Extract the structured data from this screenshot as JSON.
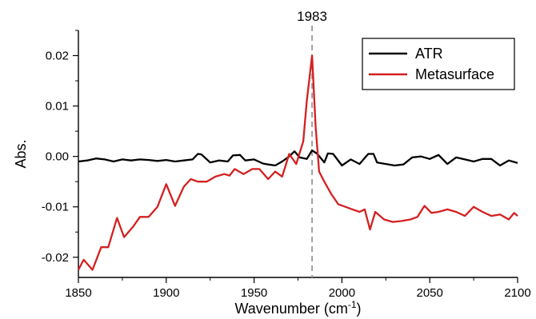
{
  "chart_data": {
    "type": "line",
    "xlabel": "Wavenumber (cm",
    "xlabel_sup": "-1",
    "xlabel_close": ")",
    "ylabel": "Abs.",
    "xlim": [
      1850,
      2100
    ],
    "ylim": [
      -0.024,
      0.025
    ],
    "xticks": [
      1850,
      1900,
      1950,
      2000,
      2050,
      2100
    ],
    "xtick_labels": [
      "1850",
      "1900",
      "1950",
      "2000",
      "2050",
      "2100"
    ],
    "yticks": [
      -0.02,
      -0.01,
      0.0,
      0.01,
      0.02
    ],
    "ytick_labels": [
      "-0.02",
      "-0.01",
      "0.00",
      "0.01",
      "0.02"
    ],
    "grid": false,
    "legend_position": "top-right",
    "reference_line": {
      "x": 1983,
      "label": "1983",
      "style": "dashed",
      "color": "#999999"
    },
    "series": [
      {
        "name": "ATR",
        "color": "#000000",
        "x": [
          1850,
          1855,
          1860,
          1865,
          1870,
          1875,
          1880,
          1885,
          1890,
          1895,
          1900,
          1905,
          1910,
          1915,
          1918,
          1920,
          1925,
          1930,
          1935,
          1938,
          1942,
          1945,
          1950,
          1955,
          1958,
          1962,
          1966,
          1970,
          1973,
          1976,
          1980,
          1983,
          1986,
          1990,
          1992,
          1995,
          2000,
          2005,
          2010,
          2015,
          2018,
          2020,
          2025,
          2030,
          2035,
          2040,
          2045,
          2050,
          2055,
          2060,
          2065,
          2070,
          2075,
          2080,
          2085,
          2090,
          2095,
          2100
        ],
        "y": [
          -0.001,
          -0.0008,
          -0.0004,
          -0.0006,
          -0.001,
          -0.0006,
          -0.0008,
          -0.0006,
          -0.0007,
          -0.0009,
          -0.0007,
          -0.001,
          -0.0008,
          -0.0006,
          0.0005,
          0.0004,
          -0.0012,
          -0.0008,
          -0.001,
          0.0002,
          0.0003,
          -0.0008,
          -0.0006,
          -0.0014,
          -0.0016,
          -0.0018,
          -0.001,
          0.0,
          0.001,
          -0.0002,
          -0.0005,
          0.0012,
          0.0005,
          -0.0012,
          0.0006,
          0.0005,
          -0.0018,
          -0.0006,
          -0.0015,
          0.0005,
          0.0005,
          -0.0012,
          -0.0015,
          -0.0018,
          -0.0016,
          -0.0002,
          0.0,
          -0.0005,
          0.0003,
          -0.0015,
          -0.0002,
          -0.0006,
          -0.001,
          -0.0005,
          -0.0005,
          -0.0018,
          -0.0008,
          -0.0013
        ]
      },
      {
        "name": "Metasurface",
        "color": "#d42020",
        "x": [
          1850,
          1853,
          1858,
          1863,
          1867,
          1872,
          1876,
          1881,
          1885,
          1890,
          1895,
          1900,
          1905,
          1910,
          1914,
          1918,
          1923,
          1928,
          1933,
          1936,
          1939,
          1944,
          1949,
          1953,
          1958,
          1962,
          1966,
          1970,
          1974,
          1978,
          1980,
          1983,
          1985,
          1987,
          1990,
          1994,
          1998,
          2002,
          2006,
          2010,
          2013,
          2016,
          2019,
          2024,
          2029,
          2034,
          2039,
          2043,
          2047,
          2051,
          2055,
          2060,
          2065,
          2070,
          2075,
          2080,
          2085,
          2090,
          2095,
          2098,
          2100
        ],
        "y": [
          -0.0225,
          -0.0205,
          -0.0225,
          -0.018,
          -0.018,
          -0.0122,
          -0.016,
          -0.014,
          -0.012,
          -0.012,
          -0.01,
          -0.0055,
          -0.0098,
          -0.006,
          -0.0045,
          -0.005,
          -0.005,
          -0.004,
          -0.0035,
          -0.0038,
          -0.0025,
          -0.0035,
          -0.0025,
          -0.0025,
          -0.0045,
          -0.003,
          -0.004,
          0.0005,
          -0.0015,
          0.003,
          0.011,
          0.02,
          0.006,
          -0.003,
          -0.005,
          -0.0075,
          -0.0095,
          -0.01,
          -0.0105,
          -0.011,
          -0.0105,
          -0.0145,
          -0.011,
          -0.0125,
          -0.013,
          -0.0128,
          -0.0125,
          -0.012,
          -0.0098,
          -0.0112,
          -0.011,
          -0.0105,
          -0.011,
          -0.0118,
          -0.01,
          -0.011,
          -0.0118,
          -0.0115,
          -0.0125,
          -0.0112,
          -0.0118
        ]
      }
    ]
  }
}
